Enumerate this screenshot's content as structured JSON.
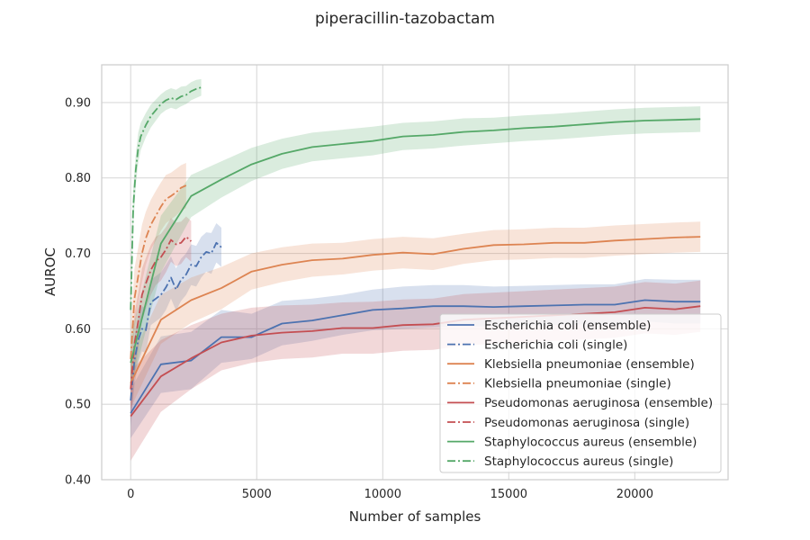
{
  "chart_data": {
    "type": "line",
    "title": "piperacillin-tazobactam",
    "xlabel": "Number of samples",
    "ylabel": "AUROC",
    "xlim": [
      -1150,
      23700
    ],
    "ylim": [
      0.4,
      0.95
    ],
    "x_ticks": [
      0,
      5000,
      10000,
      15000,
      20000
    ],
    "x_tick_labels": [
      "0",
      "5000",
      "10000",
      "15000",
      "20000"
    ],
    "y_ticks": [
      0.4,
      0.5,
      0.6,
      0.7,
      0.8,
      0.9
    ],
    "y_tick_labels": [
      "0.40",
      "0.50",
      "0.60",
      "0.70",
      "0.80",
      "0.90"
    ],
    "grid": true,
    "legend_position": "lower-right",
    "series": [
      {
        "name": "Escherichia coli (ensemble)",
        "color": "#4c72b0",
        "linestyle": "solid",
        "x": [
          0,
          1200,
          2400,
          3600,
          4800,
          6000,
          7200,
          8400,
          9600,
          10800,
          12000,
          13200,
          14400,
          15600,
          16800,
          18000,
          19200,
          20400,
          21600,
          22600
        ],
        "y": [
          0.488,
          0.553,
          0.558,
          0.589,
          0.589,
          0.607,
          0.611,
          0.618,
          0.625,
          0.627,
          0.63,
          0.63,
          0.629,
          0.63,
          0.631,
          0.632,
          0.632,
          0.638,
          0.636,
          0.636
        ],
        "band": [
          [
            0.455,
            0.52
          ],
          [
            0.515,
            0.59
          ],
          [
            0.52,
            0.596
          ],
          [
            0.555,
            0.625
          ],
          [
            0.56,
            0.62
          ],
          [
            0.578,
            0.637
          ],
          [
            0.584,
            0.64
          ],
          [
            0.592,
            0.645
          ],
          [
            0.598,
            0.652
          ],
          [
            0.6,
            0.656
          ],
          [
            0.602,
            0.658
          ],
          [
            0.603,
            0.658
          ],
          [
            0.603,
            0.656
          ],
          [
            0.604,
            0.657
          ],
          [
            0.605,
            0.658
          ],
          [
            0.606,
            0.659
          ],
          [
            0.605,
            0.659
          ],
          [
            0.61,
            0.666
          ],
          [
            0.607,
            0.665
          ],
          [
            0.607,
            0.665
          ]
        ]
      },
      {
        "name": "Escherichia coli (single)",
        "color": "#4c72b0",
        "linestyle": "dashdot",
        "x": [
          0,
          150,
          300,
          450,
          600,
          800,
          1000,
          1200,
          1400,
          1600,
          1800,
          2000,
          2200,
          2400,
          2600,
          2800,
          3000,
          3200,
          3400,
          3600
        ],
        "y": [
          0.505,
          0.558,
          0.585,
          0.6,
          0.598,
          0.635,
          0.64,
          0.645,
          0.655,
          0.668,
          0.652,
          0.665,
          0.672,
          0.685,
          0.683,
          0.695,
          0.702,
          0.7,
          0.714,
          0.708
        ],
        "band": [
          [
            0.47,
            0.54
          ],
          [
            0.525,
            0.59
          ],
          [
            0.555,
            0.615
          ],
          [
            0.57,
            0.63
          ],
          [
            0.568,
            0.628
          ],
          [
            0.605,
            0.665
          ],
          [
            0.61,
            0.67
          ],
          [
            0.615,
            0.675
          ],
          [
            0.625,
            0.685
          ],
          [
            0.64,
            0.696
          ],
          [
            0.624,
            0.68
          ],
          [
            0.637,
            0.693
          ],
          [
            0.645,
            0.7
          ],
          [
            0.658,
            0.712
          ],
          [
            0.656,
            0.71
          ],
          [
            0.668,
            0.722
          ],
          [
            0.676,
            0.728
          ],
          [
            0.673,
            0.727
          ],
          [
            0.688,
            0.74
          ],
          [
            0.682,
            0.734
          ]
        ]
      },
      {
        "name": "Klebsiella pneumoniae (ensemble)",
        "color": "#dd8452",
        "linestyle": "solid",
        "x": [
          0,
          1200,
          2400,
          3600,
          4800,
          6000,
          7200,
          8400,
          9600,
          10800,
          12000,
          13200,
          14400,
          15600,
          16800,
          18000,
          19200,
          20400,
          21600,
          22600
        ],
        "y": [
          0.528,
          0.612,
          0.638,
          0.654,
          0.676,
          0.685,
          0.691,
          0.693,
          0.698,
          0.701,
          0.699,
          0.706,
          0.711,
          0.712,
          0.714,
          0.714,
          0.717,
          0.719,
          0.721,
          0.722
        ],
        "band": [
          [
            0.495,
            0.56
          ],
          [
            0.58,
            0.645
          ],
          [
            0.608,
            0.668
          ],
          [
            0.626,
            0.682
          ],
          [
            0.652,
            0.7
          ],
          [
            0.662,
            0.708
          ],
          [
            0.669,
            0.713
          ],
          [
            0.672,
            0.714
          ],
          [
            0.677,
            0.719
          ],
          [
            0.68,
            0.722
          ],
          [
            0.678,
            0.72
          ],
          [
            0.686,
            0.726
          ],
          [
            0.691,
            0.731
          ],
          [
            0.692,
            0.732
          ],
          [
            0.694,
            0.734
          ],
          [
            0.694,
            0.734
          ],
          [
            0.697,
            0.737
          ],
          [
            0.699,
            0.739
          ],
          [
            0.701,
            0.741
          ],
          [
            0.702,
            0.742
          ]
        ]
      },
      {
        "name": "Klebsiella pneumoniae (single)",
        "color": "#dd8452",
        "linestyle": "dashdot",
        "x": [
          0,
          150,
          300,
          450,
          600,
          800,
          1000,
          1200,
          1400,
          1600,
          1800,
          2000,
          2200
        ],
        "y": [
          0.56,
          0.64,
          0.67,
          0.7,
          0.72,
          0.738,
          0.75,
          0.762,
          0.772,
          0.776,
          0.781,
          0.787,
          0.79
        ],
        "band": [
          [
            0.52,
            0.6
          ],
          [
            0.6,
            0.68
          ],
          [
            0.632,
            0.708
          ],
          [
            0.662,
            0.738
          ],
          [
            0.685,
            0.755
          ],
          [
            0.705,
            0.771
          ],
          [
            0.717,
            0.783
          ],
          [
            0.73,
            0.794
          ],
          [
            0.74,
            0.804
          ],
          [
            0.745,
            0.807
          ],
          [
            0.75,
            0.812
          ],
          [
            0.757,
            0.817
          ],
          [
            0.76,
            0.82
          ]
        ]
      },
      {
        "name": "Pseudomonas aeruginosa (ensemble)",
        "color": "#c44e52",
        "linestyle": "solid",
        "x": [
          0,
          1200,
          2400,
          3600,
          4800,
          6000,
          7200,
          8400,
          9600,
          10800,
          12000,
          13200,
          14400,
          15600,
          16800,
          18000,
          19200,
          20400,
          21600,
          22600
        ],
        "y": [
          0.484,
          0.537,
          0.561,
          0.582,
          0.591,
          0.595,
          0.597,
          0.601,
          0.601,
          0.605,
          0.606,
          0.612,
          0.614,
          0.616,
          0.618,
          0.62,
          0.622,
          0.628,
          0.626,
          0.63
        ],
        "band": [
          [
            0.425,
            0.545
          ],
          [
            0.49,
            0.585
          ],
          [
            0.52,
            0.605
          ],
          [
            0.545,
            0.62
          ],
          [
            0.555,
            0.628
          ],
          [
            0.56,
            0.631
          ],
          [
            0.562,
            0.632
          ],
          [
            0.567,
            0.635
          ],
          [
            0.567,
            0.636
          ],
          [
            0.571,
            0.639
          ],
          [
            0.572,
            0.64
          ],
          [
            0.578,
            0.646
          ],
          [
            0.58,
            0.648
          ],
          [
            0.582,
            0.65
          ],
          [
            0.584,
            0.652
          ],
          [
            0.586,
            0.654
          ],
          [
            0.588,
            0.656
          ],
          [
            0.594,
            0.662
          ],
          [
            0.592,
            0.66
          ],
          [
            0.596,
            0.664
          ]
        ]
      },
      {
        "name": "Pseudomonas aeruginosa (single)",
        "color": "#c44e52",
        "linestyle": "dashdot",
        "x": [
          0,
          150,
          300,
          450,
          600,
          800,
          1000,
          1200,
          1400,
          1600,
          1800,
          2000,
          2200,
          2400
        ],
        "y": [
          0.52,
          0.58,
          0.61,
          0.645,
          0.66,
          0.678,
          0.69,
          0.695,
          0.705,
          0.718,
          0.712,
          0.714,
          0.722,
          0.716
        ],
        "band": [
          [
            0.475,
            0.565
          ],
          [
            0.54,
            0.62
          ],
          [
            0.572,
            0.648
          ],
          [
            0.61,
            0.68
          ],
          [
            0.626,
            0.694
          ],
          [
            0.645,
            0.711
          ],
          [
            0.658,
            0.722
          ],
          [
            0.664,
            0.726
          ],
          [
            0.675,
            0.735
          ],
          [
            0.689,
            0.747
          ],
          [
            0.683,
            0.741
          ],
          [
            0.686,
            0.742
          ],
          [
            0.695,
            0.749
          ],
          [
            0.689,
            0.743
          ]
        ]
      },
      {
        "name": "Staphylococcus aureus (ensemble)",
        "color": "#55a868",
        "linestyle": "solid",
        "x": [
          0,
          1200,
          2400,
          3600,
          4800,
          6000,
          7200,
          8400,
          9600,
          10800,
          12000,
          13200,
          14400,
          15600,
          16800,
          18000,
          19200,
          20400,
          21600,
          22600
        ],
        "y": [
          0.555,
          0.713,
          0.776,
          0.798,
          0.818,
          0.832,
          0.841,
          0.845,
          0.849,
          0.855,
          0.857,
          0.861,
          0.863,
          0.866,
          0.868,
          0.871,
          0.874,
          0.876,
          0.877,
          0.878
        ],
        "band": [
          [
            0.52,
            0.59
          ],
          [
            0.675,
            0.75
          ],
          [
            0.748,
            0.804
          ],
          [
            0.774,
            0.822
          ],
          [
            0.796,
            0.84
          ],
          [
            0.812,
            0.852
          ],
          [
            0.822,
            0.86
          ],
          [
            0.826,
            0.864
          ],
          [
            0.83,
            0.868
          ],
          [
            0.837,
            0.873
          ],
          [
            0.839,
            0.875
          ],
          [
            0.843,
            0.879
          ],
          [
            0.846,
            0.88
          ],
          [
            0.849,
            0.883
          ],
          [
            0.851,
            0.885
          ],
          [
            0.854,
            0.888
          ],
          [
            0.857,
            0.891
          ],
          [
            0.859,
            0.893
          ],
          [
            0.86,
            0.894
          ],
          [
            0.861,
            0.895
          ]
        ]
      },
      {
        "name": "Staphylococcus aureus (single)",
        "color": "#55a868",
        "linestyle": "dashdot",
        "x": [
          0,
          100,
          200,
          300,
          400,
          600,
          800,
          1000,
          1200,
          1400,
          1600,
          1800,
          2000,
          2200,
          2400,
          2600,
          2800
        ],
        "y": [
          0.625,
          0.76,
          0.81,
          0.84,
          0.855,
          0.87,
          0.882,
          0.89,
          0.898,
          0.903,
          0.906,
          0.904,
          0.908,
          0.91,
          0.915,
          0.918,
          0.92
        ],
        "band": [
          [
            0.6,
            0.65
          ],
          [
            0.735,
            0.785
          ],
          [
            0.79,
            0.83
          ],
          [
            0.82,
            0.86
          ],
          [
            0.837,
            0.873
          ],
          [
            0.854,
            0.886
          ],
          [
            0.867,
            0.897
          ],
          [
            0.876,
            0.904
          ],
          [
            0.885,
            0.911
          ],
          [
            0.89,
            0.916
          ],
          [
            0.893,
            0.919
          ],
          [
            0.891,
            0.917
          ],
          [
            0.895,
            0.921
          ],
          [
            0.898,
            0.922
          ],
          [
            0.903,
            0.927
          ],
          [
            0.906,
            0.93
          ],
          [
            0.909,
            0.931
          ]
        ]
      }
    ]
  }
}
